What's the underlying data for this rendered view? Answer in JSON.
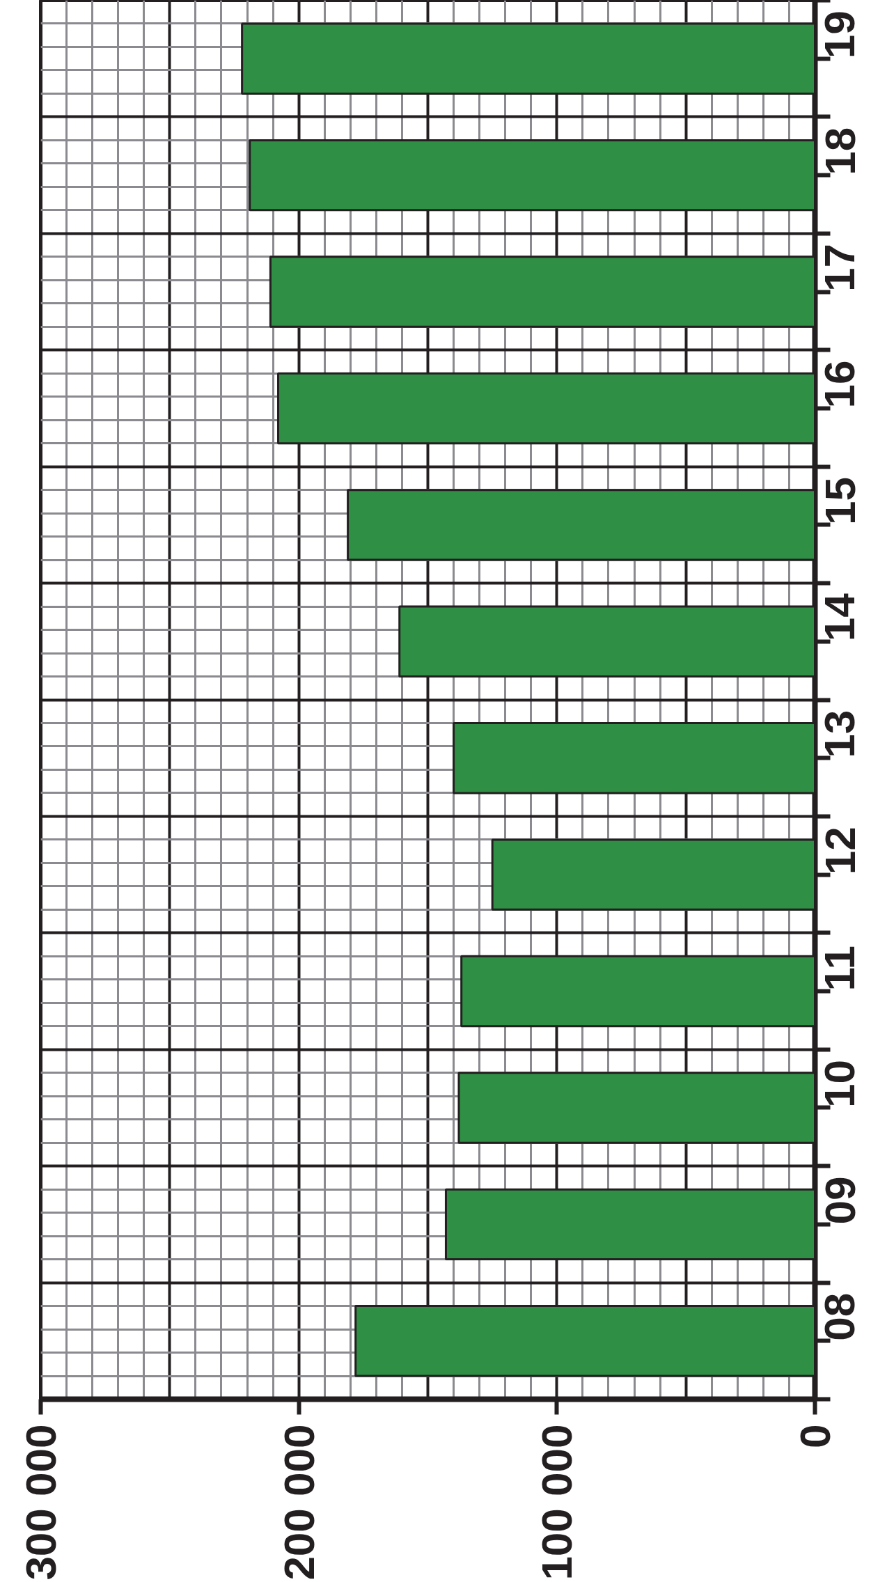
{
  "chart_data": {
    "type": "bar",
    "orientation": "horizontal",
    "categories": [
      "19",
      "18",
      "17",
      "16",
      "15",
      "14",
      "13",
      "12",
      "11",
      "10",
      "09",
      "08"
    ],
    "values": [
      222000,
      219000,
      211000,
      208000,
      181000,
      161000,
      140000,
      125000,
      137000,
      138000,
      143000,
      178000
    ],
    "color": "#2f8f45",
    "xlim": [
      300000,
      0
    ],
    "xticks": [
      {
        "value": 0,
        "label": "0"
      },
      {
        "value": 100000,
        "label": "100 000"
      },
      {
        "value": 200000,
        "label": "200 000"
      },
      {
        "value": 300000,
        "label": "300 000"
      }
    ],
    "grid": true
  }
}
